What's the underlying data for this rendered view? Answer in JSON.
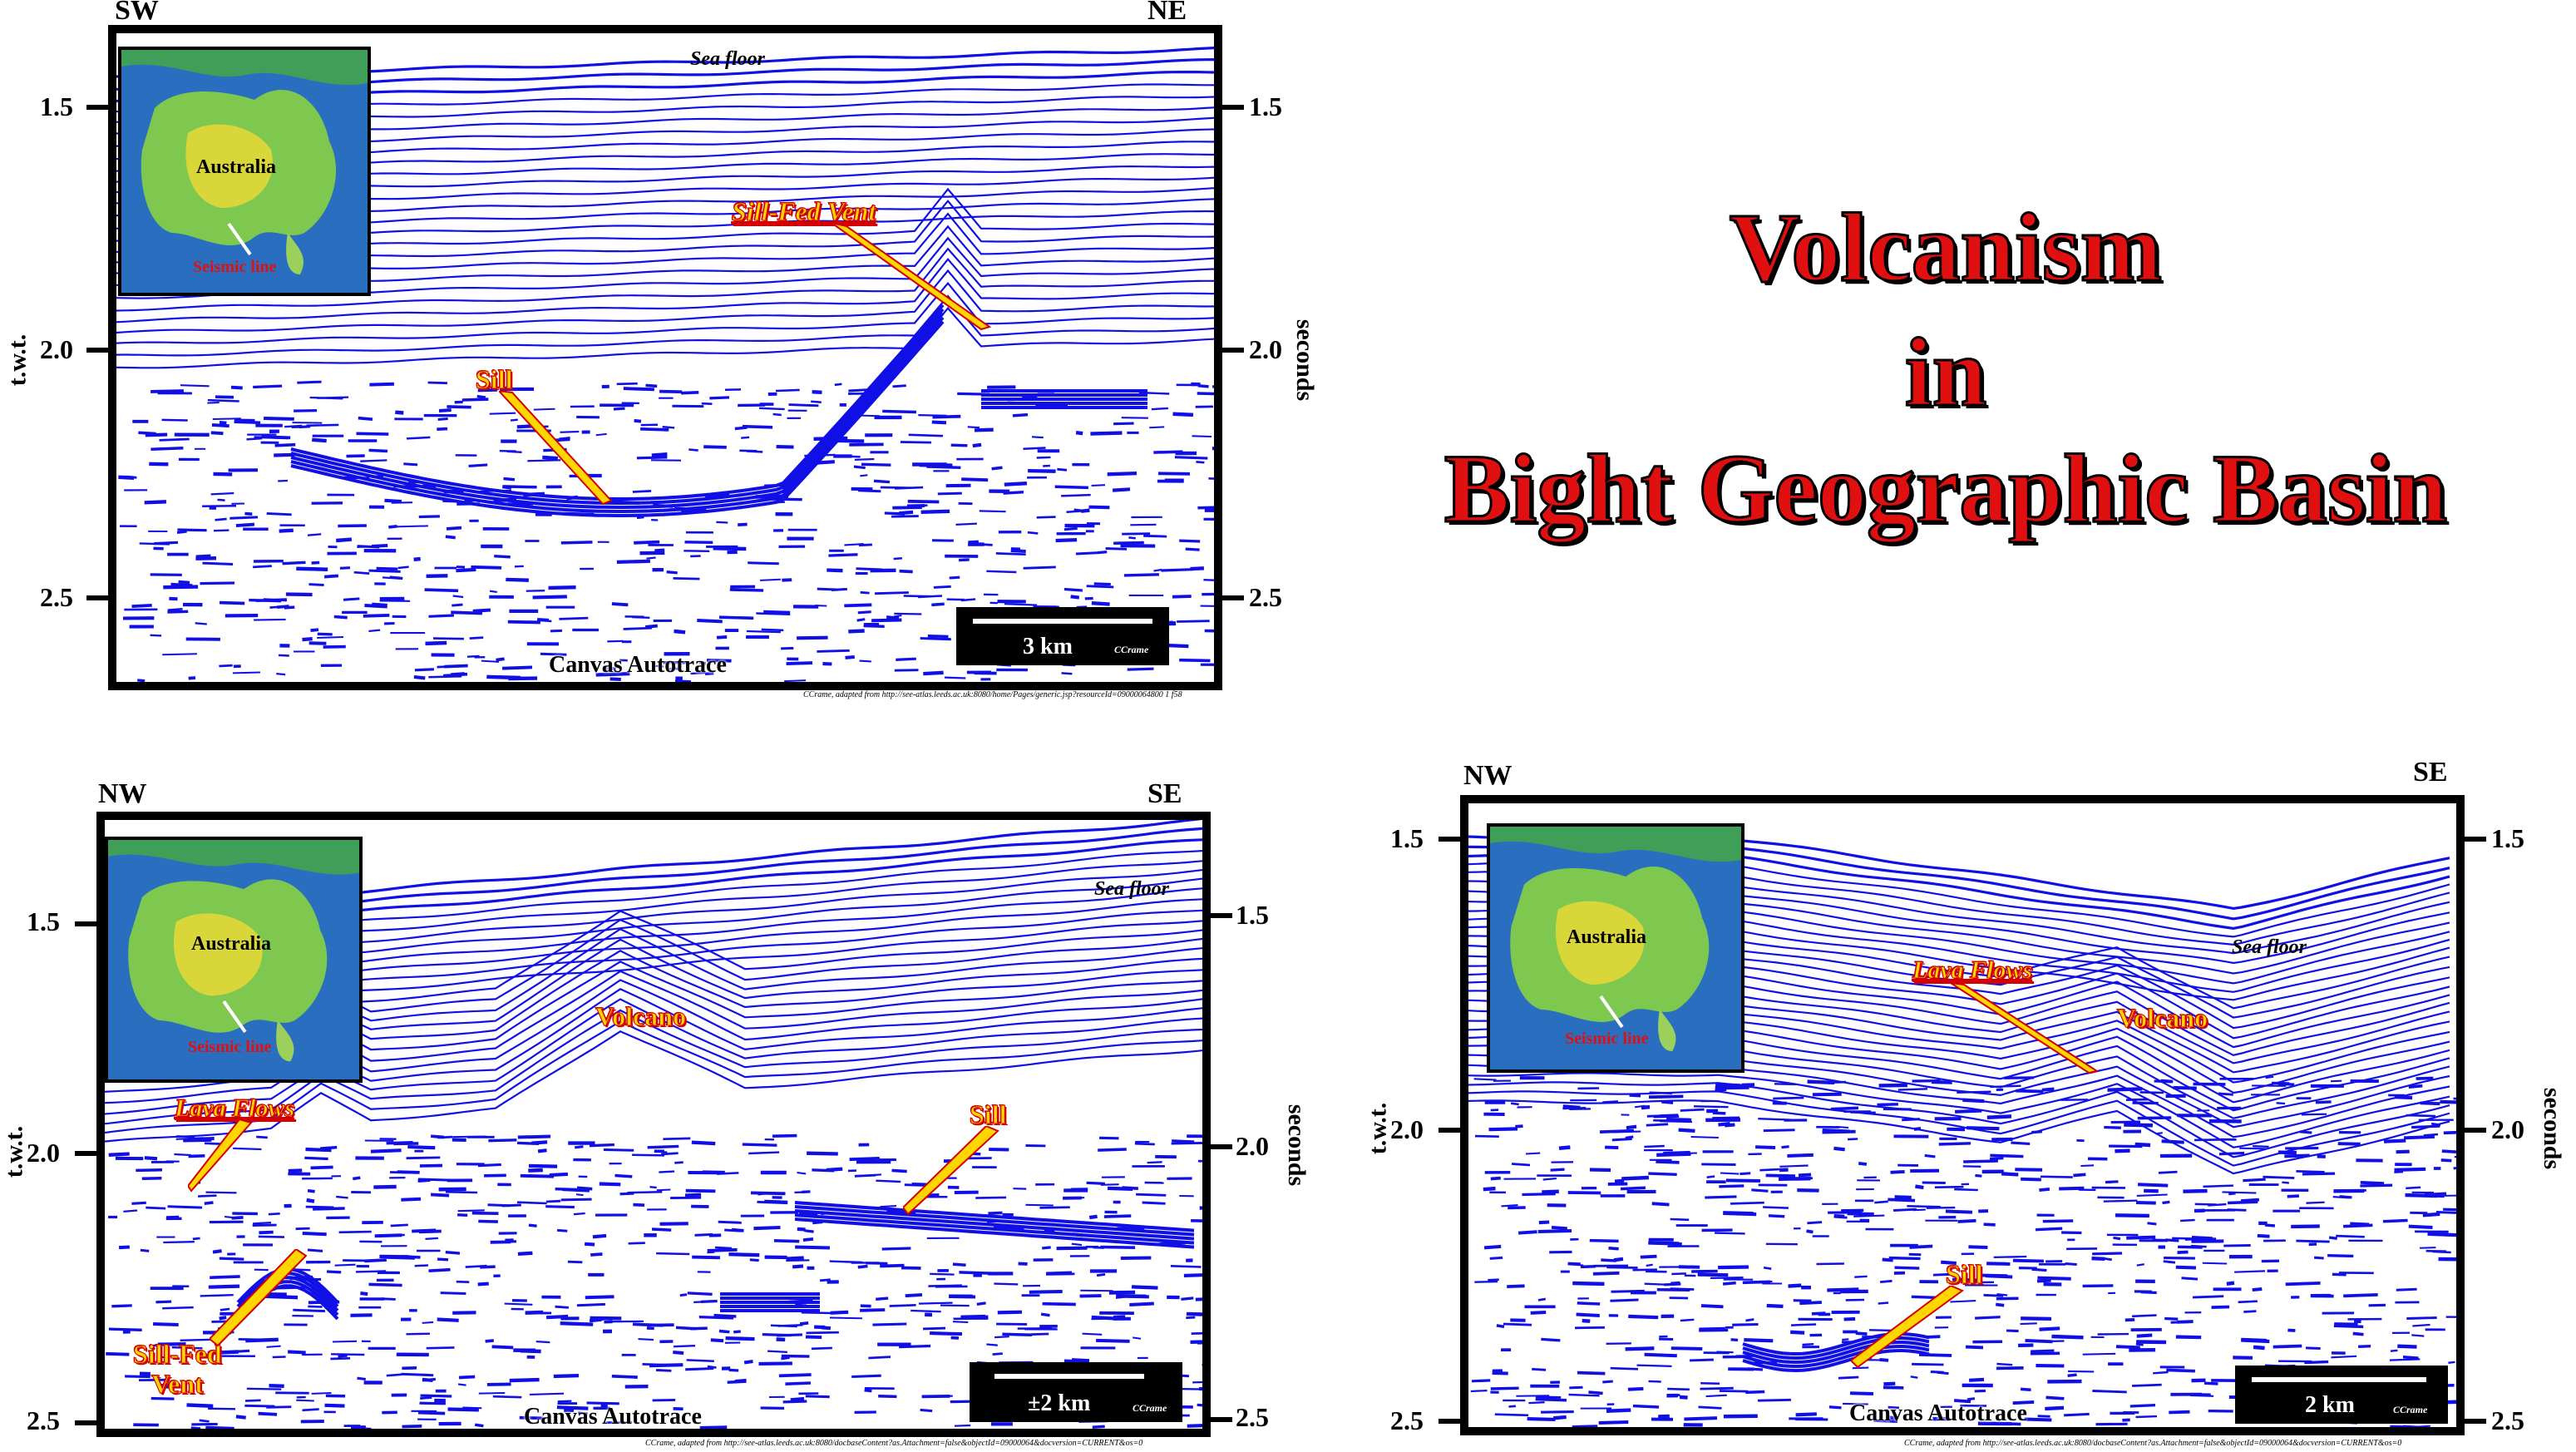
{
  "title": {
    "line1": "Volcanism",
    "line2": "in",
    "line3": "Bight Geographic Basin"
  },
  "colors": {
    "reflector": "#1010e6",
    "title_fill": "#e01010",
    "annotation_fill": "#ffd600",
    "annotation_outline": "#d40000"
  },
  "panel_top": {
    "dir_left": "SW",
    "dir_right": "NE",
    "ticks": [
      "1.5",
      "2.0",
      "2.5"
    ],
    "axis_left": "t.w.t.",
    "axis_right": "seconds",
    "sea_floor": "Sea floor",
    "ann_vent": "Sill-Fed Vent",
    "ann_sill": "Sill",
    "watermark": "Canvas Autotrace",
    "scale": "3 km",
    "copyright": "CCrame",
    "inset_country": "Australia",
    "inset_line": "Seismic line",
    "credit": "CCrame, adapted from http://see-atlas.leeds.ac.uk:8080/home/Pages/generic.jsp?resourceId=09000064800 1 f58"
  },
  "panel_bl": {
    "dir_left": "NW",
    "dir_right": "SE",
    "ticks": [
      "1.5",
      "2.0",
      "2.5"
    ],
    "axis_left": "t.w.t.",
    "axis_right": "seconds",
    "sea_floor": "Sea floor",
    "ann_volcano": "Volcano",
    "ann_lava": "Lava Flows",
    "ann_sill": "Sill",
    "ann_vent_1": "Sill-Fed",
    "ann_vent_2": "Vent",
    "watermark": "Canvas Autotrace",
    "scale": "±2 km",
    "copyright": "CCrame",
    "inset_country": "Australia",
    "inset_line": "Seismic line",
    "credit": "CCrame, adapted from http://see-atlas.leeds.ac.uk:8080/docbaseContent?as.Attachment=false&objectId=09000064&docversion=CURRENT&os=0"
  },
  "panel_br": {
    "dir_left": "NW",
    "dir_right": "SE",
    "ticks": [
      "1.5",
      "2.0",
      "2.5"
    ],
    "axis_left": "t.w.t.",
    "axis_right": "seconds",
    "sea_floor": "Sea floor",
    "ann_lava": "Lava Flows",
    "ann_volcano": "Volcano",
    "ann_sill": "Sill",
    "watermark": "Canvas Autotrace",
    "scale": "2 km",
    "copyright": "CCrame",
    "inset_country": "Australia",
    "inset_line": "Seismic line",
    "credit": "CCrame, adapted from http://see-atlas.leeds.ac.uk:8080/docbaseContent?as.Attachment=false&objectId=09000064&docversion=CURRENT&os=0"
  }
}
